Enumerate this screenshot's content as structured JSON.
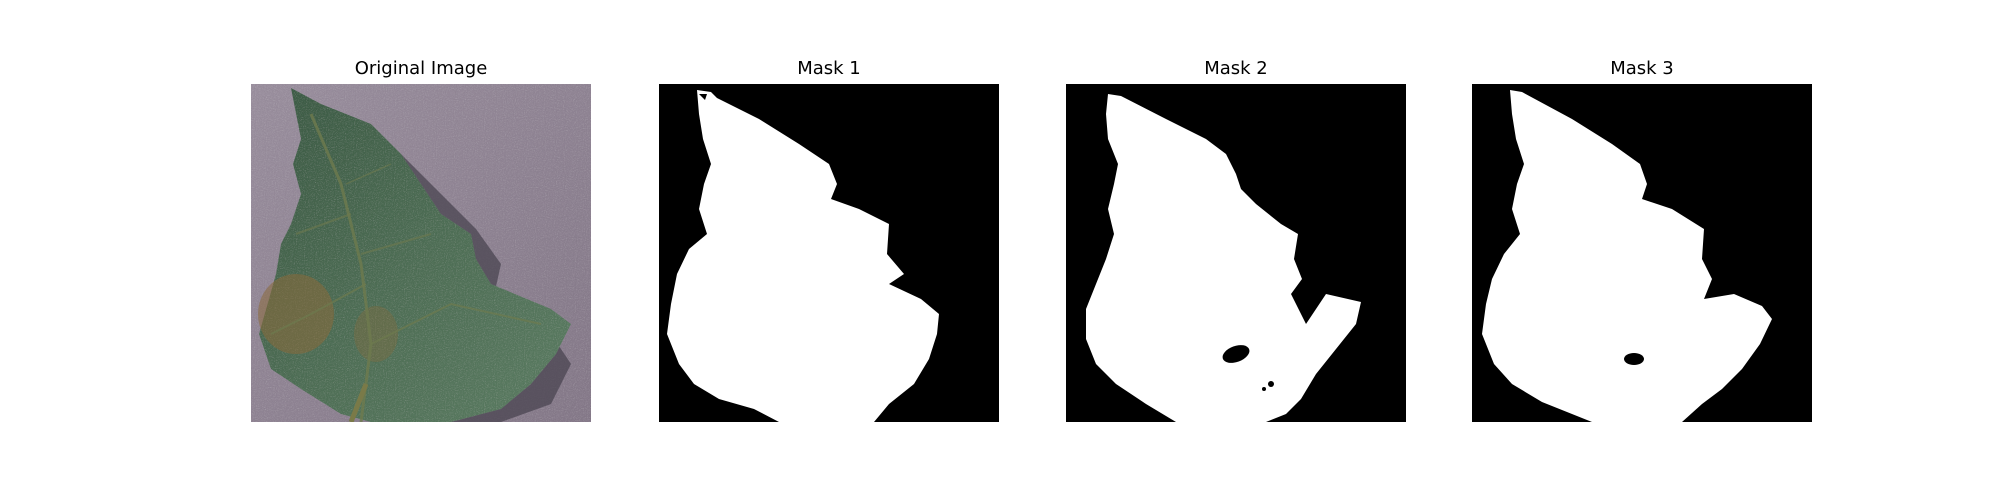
{
  "figure": {
    "panels": [
      {
        "title": "Original Image",
        "kind": "photo"
      },
      {
        "title": "Mask 1",
        "kind": "mask"
      },
      {
        "title": "Mask 2",
        "kind": "mask"
      },
      {
        "title": "Mask 3",
        "kind": "mask"
      }
    ]
  },
  "colors": {
    "background_photo": "#8f8392",
    "leaf_dark": "#3f5c45",
    "leaf_mid": "#54735a",
    "leaf_brown": "#8a6a3a",
    "shadow": "#4a4450",
    "mask_background": "#000000",
    "mask_foreground": "#ffffff"
  }
}
